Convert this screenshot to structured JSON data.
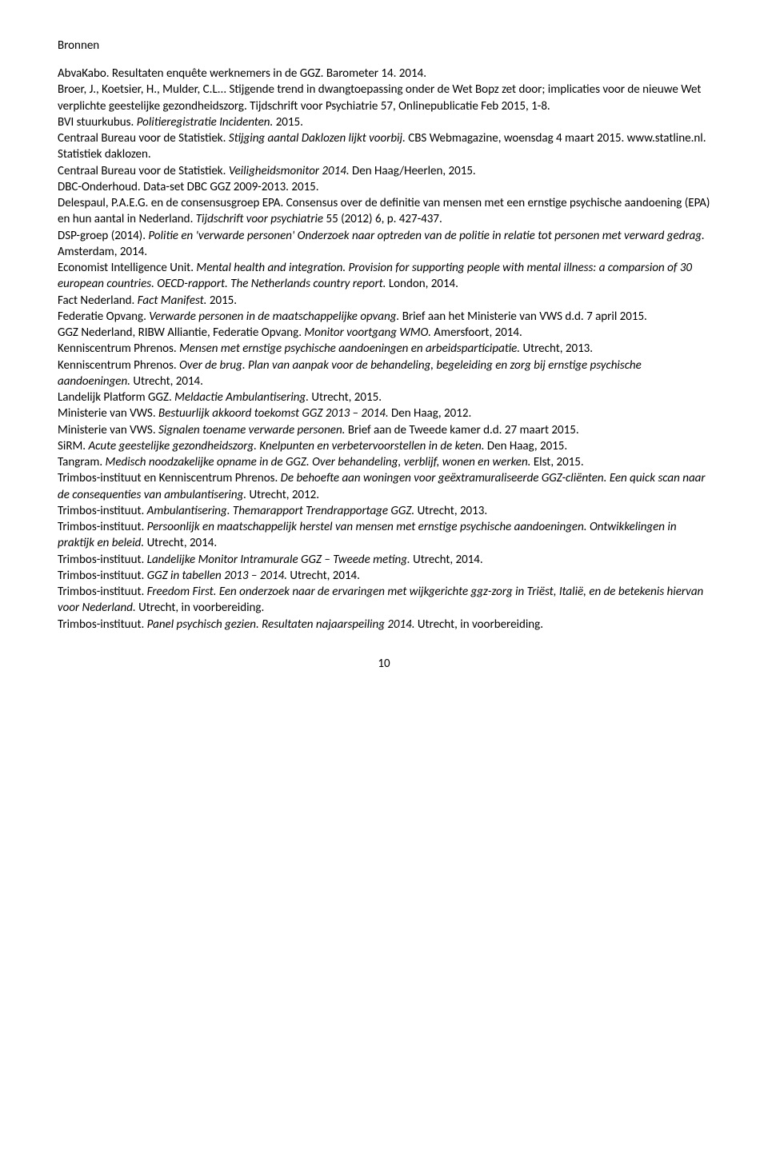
{
  "heading": "Bronnen",
  "entries": [
    [
      {
        "t": "AbvaKabo. Resultaten enquête werknemers in de GGZ. Barometer 14. 2014.",
        "i": false
      }
    ],
    [
      {
        "t": "Broer, J., Koetsier, H., Mulder, C.L... Stijgende trend in dwangtoepassing onder de Wet Bopz zet door; implicaties voor de nieuwe Wet verplichte geestelijke gezondheidszorg. Tijdschrift voor Psychiatrie 57, Onlinepublicatie Feb 2015, 1-8.",
        "i": false
      }
    ],
    [
      {
        "t": "BVI stuurkubus. ",
        "i": false
      },
      {
        "t": "Politieregistratie Incidenten.",
        "i": true
      },
      {
        "t": " 2015.",
        "i": false
      }
    ],
    [
      {
        "t": "Centraal Bureau voor de Statistiek. ",
        "i": false
      },
      {
        "t": "Stijging aantal Daklozen lijkt voorbij.",
        "i": true
      },
      {
        "t": " CBS Webmagazine, woensdag 4 maart 2015. ",
        "i": false
      },
      {
        "t": "www.statline.nl.",
        "i": false
      },
      {
        "t": " Statistiek daklozen.",
        "i": false
      }
    ],
    [
      {
        "t": "Centraal Bureau voor de Statistiek. ",
        "i": false
      },
      {
        "t": "Veiligheidsmonitor 2014.",
        "i": true
      },
      {
        "t": " Den Haag/Heerlen, 2015.",
        "i": false
      }
    ],
    [
      {
        "t": "DBC-Onderhoud. Data-set DBC GGZ 2009-2013. 2015.",
        "i": false
      }
    ],
    [
      {
        "t": "Delespaul, P.A.E.G. en de consensusgroep EPA. Consensus over de definitie van mensen met een ernstige psychische aandoening (EPA) en hun aantal in Nederland. ",
        "i": false
      },
      {
        "t": "Tijdschrift voor psychiatrie",
        "i": true
      },
      {
        "t": " 55 (2012) 6, p. 427-437.",
        "i": false
      }
    ],
    [
      {
        "t": "DSP-groep (2014). ",
        "i": false
      },
      {
        "t": "Politie en 'verwarde personen' Onderzoek naar optreden van de politie in relatie tot personen met verward gedrag.",
        "i": true
      },
      {
        "t": " Amsterdam, 2014.",
        "i": false
      }
    ],
    [
      {
        "t": "Economist Intelligence Unit. ",
        "i": false
      },
      {
        "t": "Mental health and integration. Provision for supporting people with mental illness: a comparsion of 30 european countries. OECD-rapport. The Netherlands country report.",
        "i": true
      },
      {
        "t": " London, 2014.",
        "i": false
      }
    ],
    [
      {
        "t": "Fact Nederland. ",
        "i": false
      },
      {
        "t": "Fact Manifest.",
        "i": true
      },
      {
        "t": " 2015.",
        "i": false
      }
    ],
    [
      {
        "t": "Federatie Opvang. ",
        "i": false
      },
      {
        "t": "Verwarde personen in de maatschappelijke opvang.",
        "i": true
      },
      {
        "t": " Brief aan het Ministerie van VWS d.d. 7 april 2015.",
        "i": false
      }
    ],
    [
      {
        "t": "GGZ Nederland, RIBW Alliantie, Federatie Opvang. ",
        "i": false
      },
      {
        "t": "Monitor voortgang WMO.",
        "i": true
      },
      {
        "t": " Amersfoort, 2014.",
        "i": false
      }
    ],
    [
      {
        "t": "Kenniscentrum Phrenos. ",
        "i": false
      },
      {
        "t": "Mensen met ernstige psychische aandoeningen en arbeidsparticipatie.",
        "i": true
      },
      {
        "t": " Utrecht, 2013.",
        "i": false
      }
    ],
    [
      {
        "t": "Kenniscentrum Phrenos. ",
        "i": false
      },
      {
        "t": "Over de brug. Plan van aanpak voor de behandeling, begeleiding en zorg bij ernstige psychische aandoeningen.",
        "i": true
      },
      {
        "t": " Utrecht, 2014.",
        "i": false
      }
    ],
    [
      {
        "t": "Landelijk Platform GGZ. ",
        "i": false
      },
      {
        "t": "Meldactie Ambulantisering.",
        "i": true
      },
      {
        "t": " Utrecht, 2015.",
        "i": false
      }
    ],
    [
      {
        "t": "Ministerie van VWS. ",
        "i": false
      },
      {
        "t": "Bestuurlijk akkoord toekomst GGZ 2013 – 2014.",
        "i": true
      },
      {
        "t": " Den Haag, 2012.",
        "i": false
      }
    ],
    [
      {
        "t": "Ministerie van VWS. ",
        "i": false
      },
      {
        "t": "Signalen toename verwarde personen.",
        "i": true
      },
      {
        "t": " Brief aan de Tweede kamer d.d. 27 maart 2015.",
        "i": false
      }
    ],
    [
      {
        "t": "SiRM. ",
        "i": false
      },
      {
        "t": "Acute geestelijke gezondheidszorg. Knelpunten en verbetervoorstellen in de keten.",
        "i": true
      },
      {
        "t": " Den Haag, 2015.",
        "i": false
      }
    ],
    [
      {
        "t": "Tangram. ",
        "i": false
      },
      {
        "t": "Medisch noodzakelijke opname in de GGZ. Over behandeling, verblijf, wonen en werken.",
        "i": true
      },
      {
        "t": " Elst, 2015.",
        "i": false
      }
    ],
    [
      {
        "t": "Trimbos-instituut en Kenniscentrum Phrenos. ",
        "i": false
      },
      {
        "t": "De behoefte aan woningen voor geëxtramuraliseerde GGZ-cliënten. Een quick scan naar de consequenties van ambulantisering.",
        "i": true
      },
      {
        "t": " Utrecht, 2012.",
        "i": false
      }
    ],
    [
      {
        "t": "Trimbos-instituut. ",
        "i": false
      },
      {
        "t": "Ambulantisering. Themarapport Trendrapportage GGZ.",
        "i": true
      },
      {
        "t": " Utrecht, 2013.",
        "i": false
      }
    ],
    [
      {
        "t": "Trimbos-instituut. ",
        "i": false
      },
      {
        "t": "Persoonlijk en maatschappelijk herstel van mensen met ernstige psychische aandoeningen. Ontwikkelingen in praktijk en beleid.",
        "i": true
      },
      {
        "t": " Utrecht, 2014.",
        "i": false
      }
    ],
    [
      {
        "t": "Trimbos-instituut. ",
        "i": false
      },
      {
        "t": "Landelijke Monitor Intramurale GGZ – Tweede meting.",
        "i": true
      },
      {
        "t": " Utrecht, 2014.",
        "i": false
      }
    ],
    [
      {
        "t": "Trimbos-instituut. ",
        "i": false
      },
      {
        "t": "GGZ in tabellen 2013 – 2014.",
        "i": true
      },
      {
        "t": " Utrecht, 2014.",
        "i": false
      }
    ],
    [
      {
        "t": "Trimbos-instituut. ",
        "i": false
      },
      {
        "t": "Freedom First. Een onderzoek naar de ervaringen met wijkgerichte ggz-zorg in Triëst, Italië, en de betekenis hiervan voor Nederland.",
        "i": true
      },
      {
        "t": " Utrecht, in voorbereiding.",
        "i": false
      }
    ],
    [
      {
        "t": "Trimbos-instituut. ",
        "i": false
      },
      {
        "t": "Panel psychisch gezien. Resultaten najaarspeiling 2014.",
        "i": true
      },
      {
        "t": " Utrecht, in voorbereiding.",
        "i": false
      }
    ]
  ],
  "page_number": "10"
}
